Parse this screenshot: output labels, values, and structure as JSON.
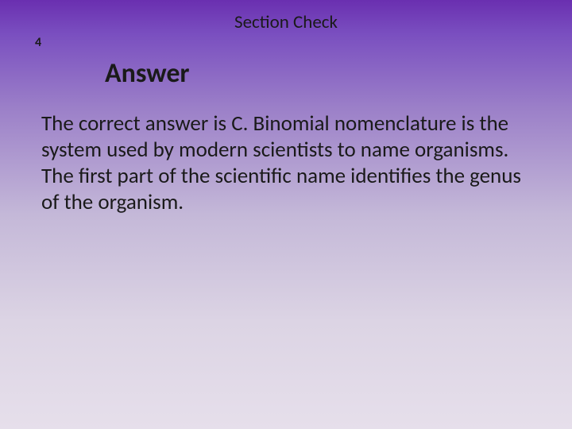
{
  "header": {
    "section_title": "Section Check",
    "slide_number": "4"
  },
  "content": {
    "heading": "Answer",
    "body": "The correct answer is C. Binomial nomenclature is the system used by modern scientists to name organisms. The first part of the scientific name identifies the genus of the organism."
  },
  "style": {
    "background_gradient_top": "#6a2fb0",
    "background_gradient_bottom": "#e6dfeb",
    "text_color": "#1a1a1a",
    "title_fontsize": 23,
    "heading_fontsize": 34,
    "body_fontsize": 27,
    "font_family": "Calibri"
  }
}
